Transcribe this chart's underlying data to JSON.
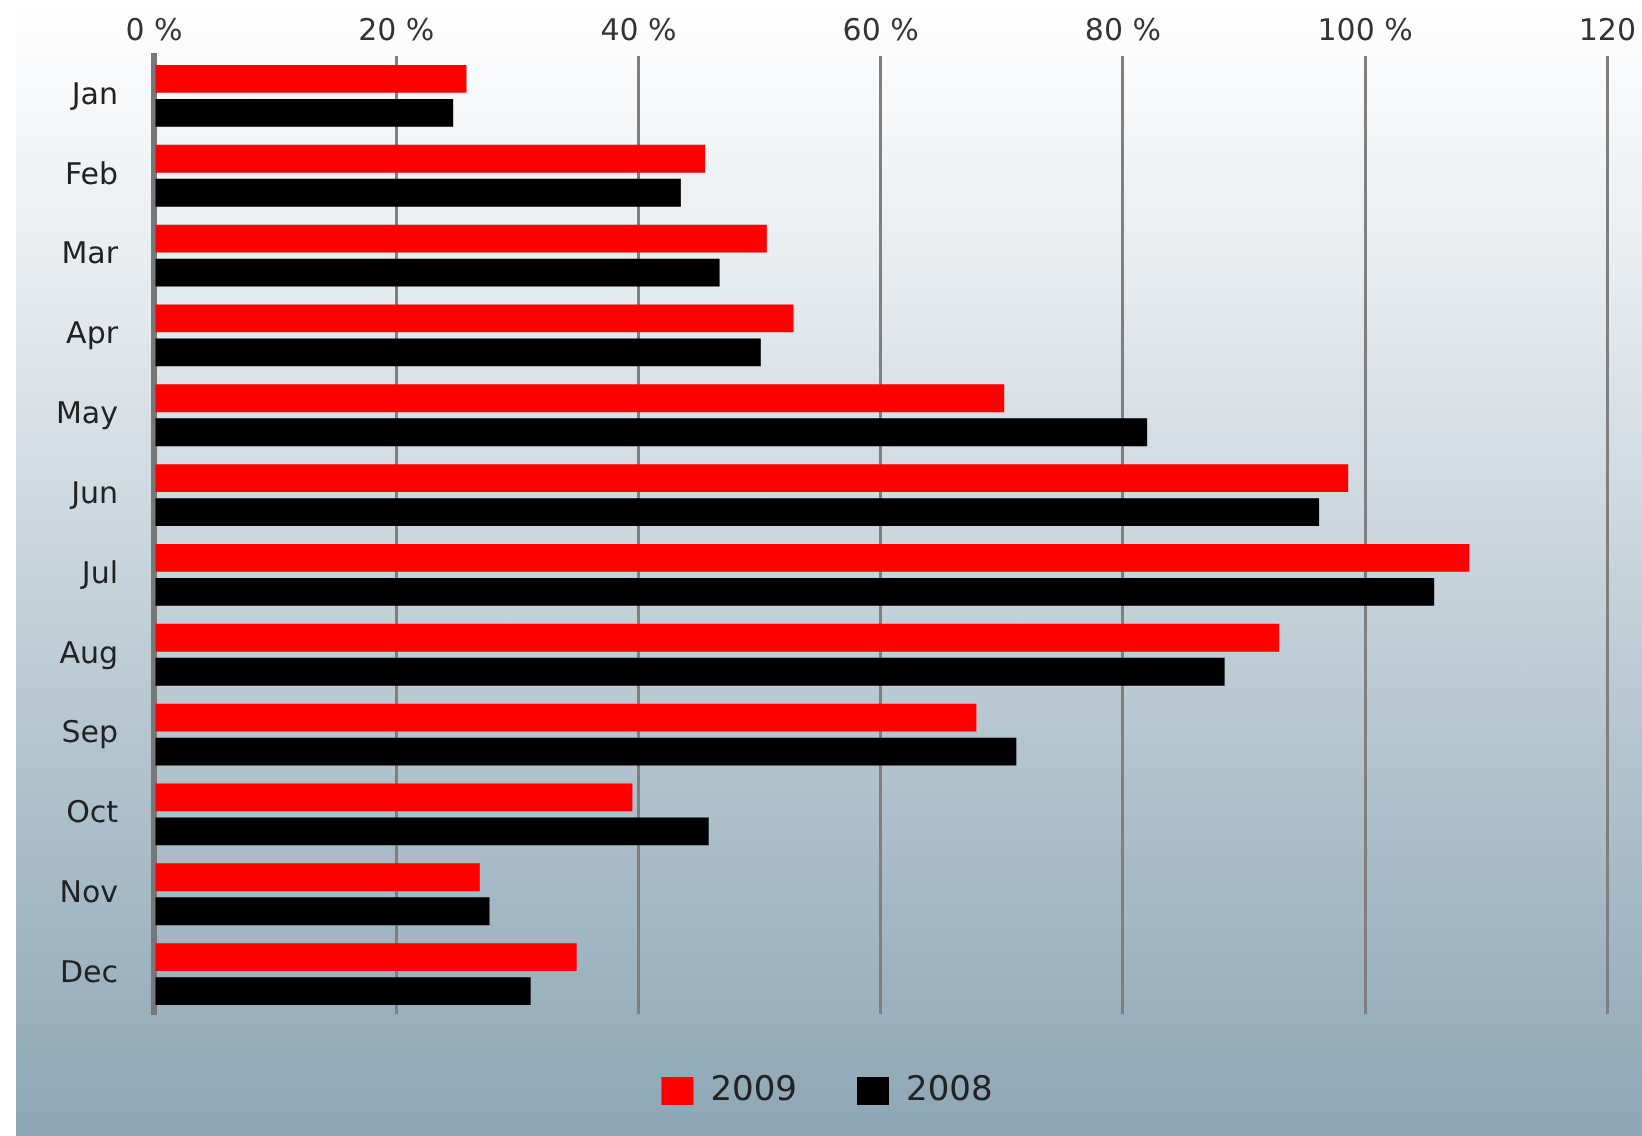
{
  "chart_data": {
    "type": "bar",
    "orientation": "horizontal",
    "categories": [
      "Jan",
      "Feb",
      "Mar",
      "Apr",
      "May",
      "Jun",
      "Jul",
      "Aug",
      "Sep",
      "Oct",
      "Nov",
      "Dec"
    ],
    "series": [
      {
        "name": "2009",
        "color": "#ff0000",
        "values": [
          25.8,
          45.5,
          50.6,
          52.8,
          70.2,
          98.6,
          108.6,
          92.9,
          67.9,
          39.5,
          26.9,
          34.9
        ]
      },
      {
        "name": "2008",
        "color": "#000000",
        "values": [
          24.7,
          43.5,
          46.7,
          50.1,
          82.0,
          96.2,
          105.7,
          88.4,
          71.2,
          45.8,
          27.7,
          31.1
        ]
      }
    ],
    "xlim": [
      0,
      120
    ],
    "xticks": [
      {
        "value": 0,
        "label": "0 %"
      },
      {
        "value": 20,
        "label": "20 %"
      },
      {
        "value": 40,
        "label": "40 %"
      },
      {
        "value": 60,
        "label": "60 %"
      },
      {
        "value": 80,
        "label": "80 %"
      },
      {
        "value": 100,
        "label": "100 %"
      },
      {
        "value": 120,
        "label": "120"
      }
    ],
    "grid": "x",
    "legend": "bottom"
  }
}
